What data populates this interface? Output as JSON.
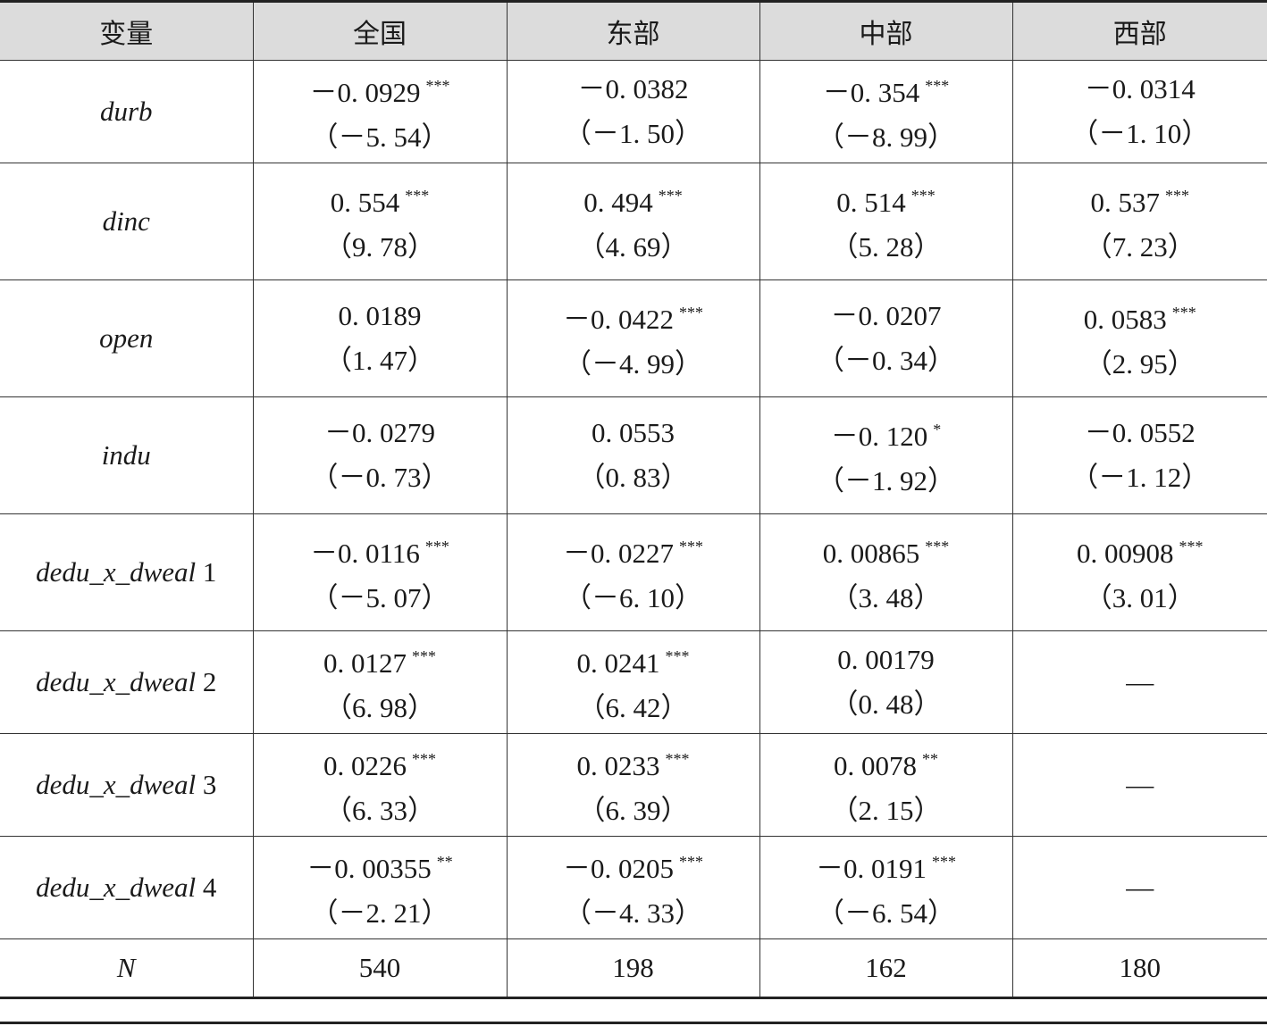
{
  "table": {
    "header": [
      "变量",
      "全国",
      "东部",
      "中部",
      "西部"
    ],
    "rows": [
      {
        "variable": {
          "name": "durb"
        },
        "cells": [
          {
            "coef": "－0. 0929",
            "stars": "***",
            "t": "（－5. 54）"
          },
          {
            "coef": "－0. 0382",
            "t": "（－1. 50）"
          },
          {
            "coef": "－0. 354",
            "stars": "***",
            "t": "（－8. 99）"
          },
          {
            "coef": "－0. 0314",
            "t": "（－1. 10）"
          }
        ]
      },
      {
        "variable": {
          "name": "dinc"
        },
        "cells": [
          {
            "coef": "0. 554",
            "stars": "***",
            "t": "（9. 78）"
          },
          {
            "coef": "0. 494",
            "stars": "***",
            "t": "（4. 69）"
          },
          {
            "coef": "0. 514",
            "stars": "***",
            "t": "（5. 28）"
          },
          {
            "coef": "0. 537",
            "stars": "***",
            "t": "（7. 23）"
          }
        ]
      },
      {
        "variable": {
          "name": "open"
        },
        "cells": [
          {
            "coef": "0. 0189",
            "t": "（1. 47）"
          },
          {
            "coef": "－0. 0422",
            "stars": "***",
            "t": "（－4. 99）"
          },
          {
            "coef": "－0. 0207",
            "t": "（－0. 34）"
          },
          {
            "coef": "0. 0583",
            "stars": "***",
            "t": "（2. 95）"
          }
        ]
      },
      {
        "variable": {
          "name": "indu"
        },
        "cells": [
          {
            "coef": "－0. 0279",
            "t": "（－0. 73）"
          },
          {
            "coef": "0. 0553",
            "t": "（0. 83）"
          },
          {
            "coef": "－0. 120",
            "stars": "*",
            "t": "（－1. 92）"
          },
          {
            "coef": "－0. 0552",
            "t": "（－1. 12）"
          }
        ]
      },
      {
        "variable": {
          "name": "dedu_x_dweal",
          "index": "1"
        },
        "cells": [
          {
            "coef": "－0. 0116",
            "stars": "***",
            "t": "（－5. 07）"
          },
          {
            "coef": "－0. 0227",
            "stars": "***",
            "t": "（－6. 10）"
          },
          {
            "coef": "0. 00865",
            "stars": "***",
            "t": "（3. 48）"
          },
          {
            "coef": "0. 00908",
            "stars": "***",
            "t": "（3. 01）"
          }
        ]
      },
      {
        "variable": {
          "name": "dedu_x_dweal",
          "index": "2"
        },
        "cells": [
          {
            "coef": "0. 0127",
            "stars": "***",
            "t": "（6. 98）"
          },
          {
            "coef": "0. 0241",
            "stars": "***",
            "t": "（6. 42）"
          },
          {
            "coef": "0. 00179",
            "t": "（0. 48）"
          },
          {
            "dash": "—"
          }
        ]
      },
      {
        "variable": {
          "name": "dedu_x_dweal",
          "index": "3"
        },
        "cells": [
          {
            "coef": "0. 0226",
            "stars": "***",
            "t": "（6. 33）"
          },
          {
            "coef": "0. 0233",
            "stars": "***",
            "t": "（6. 39）"
          },
          {
            "coef": "0. 0078",
            "stars": "**",
            "t": "（2. 15）"
          },
          {
            "dash": "—"
          }
        ]
      },
      {
        "variable": {
          "name": "dedu_x_dweal",
          "index": "4"
        },
        "cells": [
          {
            "coef": "－0. 00355",
            "stars": "**",
            "t": "（－2. 21）"
          },
          {
            "coef": "－0. 0205",
            "stars": "***",
            "t": "（－4. 33）"
          },
          {
            "coef": "－0. 0191",
            "stars": "***",
            "t": "（－6. 54）"
          },
          {
            "dash": "—"
          }
        ]
      }
    ],
    "n_row": {
      "label": "N",
      "values": [
        540,
        198,
        162,
        180
      ]
    }
  }
}
